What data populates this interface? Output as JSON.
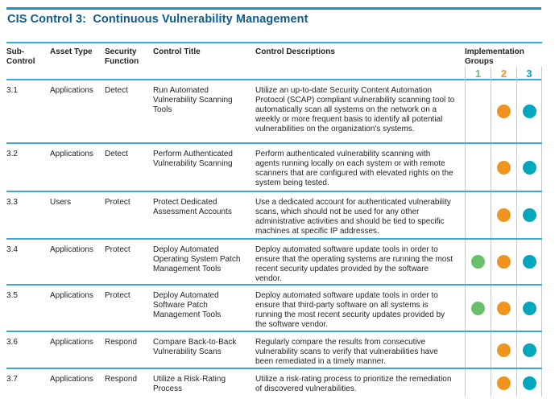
{
  "title": "CIS Control 3:  Continuous Vulnerability Management",
  "colors": {
    "title_blue": "#0d5c8d",
    "rule_blue": "#3aa9de",
    "top_rule_blue": "#1f8ec6",
    "ig1_green": "#6abf69",
    "ig2_orange": "#f09420",
    "ig3_teal": "#00a7bd",
    "separator_gray": "#c9c9c9",
    "body_text": "#231f20"
  },
  "table": {
    "headers": {
      "sub_control": "Sub-Control",
      "asset_type": "Asset Type",
      "security_function": "Security Function",
      "control_title": "Control Title",
      "control_descriptions": "Control Descriptions",
      "implementation_groups": "Implementation Groups"
    },
    "group_numbers": {
      "g1": "1",
      "g2": "2",
      "g3": "3"
    },
    "rows": [
      {
        "sub_control": "3.1",
        "asset_type": "Applications",
        "security_function": "Detect",
        "control_title": "Run Automated Vulnerability Scanning Tools",
        "control_description": "Utilize an up-to-date Security Content Automation Protocol (SCAP) compliant vulnerability scanning tool to automatically scan all systems on the network on a weekly or more frequent basis to identify all potential vulnerabilities on the organization's systems.",
        "groups": {
          "ig1": false,
          "ig2": true,
          "ig3": true
        }
      },
      {
        "sub_control": "3.2",
        "asset_type": "Applications",
        "security_function": "Detect",
        "control_title": "Perform Authenticated Vulnerability Scanning",
        "control_description": "Perform authenticated vulnerability scanning with agents running locally on each system or with remote scanners that are configured with elevated rights on the system being tested.",
        "groups": {
          "ig1": false,
          "ig2": true,
          "ig3": true
        }
      },
      {
        "sub_control": "3.3",
        "asset_type": "Users",
        "security_function": "Protect",
        "control_title": "Protect Dedicated Assessment Accounts",
        "control_description": "Use a dedicated account for authenticated vulnerability scans, which should not be used for any other administrative activities and should be tied to specific machines at specific IP addresses.",
        "groups": {
          "ig1": false,
          "ig2": true,
          "ig3": true
        }
      },
      {
        "sub_control": "3.4",
        "asset_type": "Applications",
        "security_function": "Protect",
        "control_title": "Deploy Automated Operating System Patch Management Tools",
        "control_description": "Deploy automated software update tools in order to ensure that the operating systems are running the most recent security updates provided by the software vendor.",
        "groups": {
          "ig1": true,
          "ig2": true,
          "ig3": true
        }
      },
      {
        "sub_control": "3.5",
        "asset_type": "Applications",
        "security_function": "Protect",
        "control_title": "Deploy Automated Software Patch Management Tools",
        "control_description": "Deploy automated software update tools in order to ensure that third-party software on all systems is running the most recent security updates provided by the software vendor.",
        "groups": {
          "ig1": true,
          "ig2": true,
          "ig3": true
        }
      },
      {
        "sub_control": "3.6",
        "asset_type": "Applications",
        "security_function": "Respond",
        "control_title": "Compare Back-to-Back Vulnerability Scans",
        "control_description": "Regularly compare the results from consecutive vulnerability scans to verify that vulnerabilities have been remediated in a timely manner.",
        "groups": {
          "ig1": false,
          "ig2": true,
          "ig3": true
        }
      },
      {
        "sub_control": "3.7",
        "asset_type": "Applications",
        "security_function": "Respond",
        "control_title": "Utilize a Risk-Rating Process",
        "control_description": "Utilize a risk-rating process to prioritize the remediation of discovered vulnerabilities.",
        "groups": {
          "ig1": false,
          "ig2": true,
          "ig3": true
        }
      }
    ]
  }
}
